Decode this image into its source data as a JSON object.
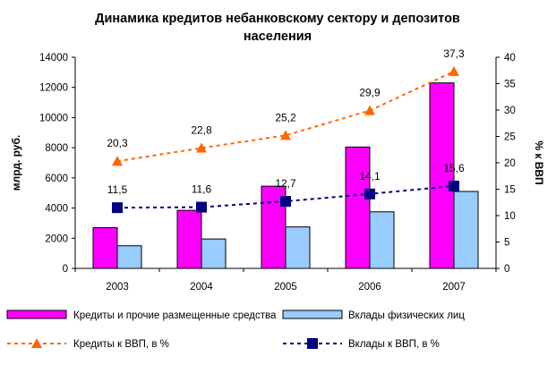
{
  "chart_data": {
    "type": "bar",
    "title": "Динамика кредитов небанковскому сектору и депозитов населения",
    "title_lines": [
      "Динамика кредитов небанковскому сектору и депозитов",
      "населения"
    ],
    "categories": [
      "2003",
      "2004",
      "2005",
      "2006",
      "2007"
    ],
    "ylabel": "млрд. руб.",
    "y2label": "% к ВВП",
    "ylim": [
      0,
      14000
    ],
    "y2lim": [
      0,
      40
    ],
    "yticks": [
      "0",
      "2000",
      "4000",
      "6000",
      "8000",
      "10000",
      "12000",
      "14000"
    ],
    "y2ticks": [
      "0",
      "5",
      "10",
      "15",
      "20",
      "25",
      "30",
      "35",
      "40"
    ],
    "grid": false,
    "legend_position": "bottom",
    "series": [
      {
        "name": "Кредиты и прочие размещенные средства",
        "type": "bar",
        "axis": "left",
        "color": "#ff00ff",
        "values": [
          2700,
          3850,
          5450,
          8050,
          12300
        ]
      },
      {
        "name": "Вклады физических лиц",
        "type": "bar",
        "axis": "left",
        "color": "#99ccff",
        "values": [
          1500,
          1950,
          2750,
          3750,
          5100
        ]
      },
      {
        "name": "Кредиты к ВВП, в %",
        "type": "line",
        "axis": "right",
        "color": "#ff6600",
        "marker": "triangle",
        "values": [
          20.3,
          22.8,
          25.2,
          29.9,
          37.3
        ],
        "labels": [
          "20,3",
          "22,8",
          "25,2",
          "29,9",
          "37,3"
        ]
      },
      {
        "name": "Вклады к ВВП, в %",
        "type": "line",
        "axis": "right",
        "color": "#000080",
        "marker": "square",
        "values": [
          11.5,
          11.6,
          12.7,
          14.1,
          15.6
        ],
        "labels": [
          "11,5",
          "11,6",
          "12,7",
          "14,1",
          "15,6"
        ]
      }
    ]
  }
}
